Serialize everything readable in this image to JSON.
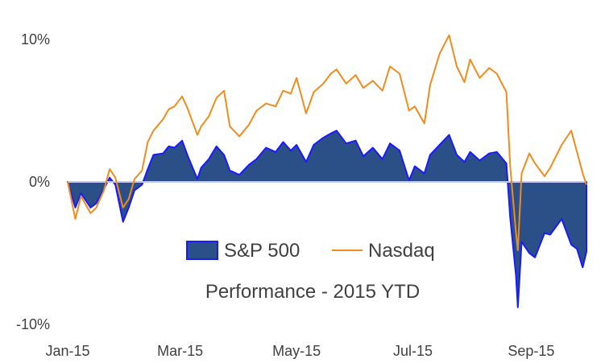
{
  "chart_data": {
    "type": "area",
    "title": "Performance  - 2015 YTD",
    "xlabel": "",
    "ylabel": "",
    "x_range": [
      "2015-01-01",
      "2015-09-30"
    ],
    "ylim": [
      -10,
      10
    ],
    "y_ticks": [
      {
        "value": 10,
        "label": "10%"
      },
      {
        "value": 0,
        "label": "0%"
      },
      {
        "value": -10,
        "label": "-10%"
      }
    ],
    "x_ticks": [
      {
        "date": "2015-01-01",
        "label": "Jan-15"
      },
      {
        "date": "2015-03-01",
        "label": "Mar-15"
      },
      {
        "date": "2015-05-01",
        "label": "May-15"
      },
      {
        "date": "2015-07-01",
        "label": "Jul-15"
      },
      {
        "date": "2015-09-01",
        "label": "Sep-15"
      }
    ],
    "grid": false,
    "legend_position": "bottom-center",
    "series": [
      {
        "name": "S&P 500",
        "type": "area",
        "fill_color": "#2b4f87",
        "edge_color": "#1a1aff",
        "points": [
          [
            "2015-01-01",
            0
          ],
          [
            "2015-01-05",
            -1.8
          ],
          [
            "2015-01-08",
            -0.8
          ],
          [
            "2015-01-13",
            -1.8
          ],
          [
            "2015-01-16",
            -1.5
          ],
          [
            "2015-01-20",
            -0.5
          ],
          [
            "2015-01-23",
            0.3
          ],
          [
            "2015-01-26",
            -0.2
          ],
          [
            "2015-01-30",
            -2.8
          ],
          [
            "2015-02-02",
            -1.8
          ],
          [
            "2015-02-05",
            -0.6
          ],
          [
            "2015-02-09",
            -0.2
          ],
          [
            "2015-02-12",
            0.9
          ],
          [
            "2015-02-15",
            1.9
          ],
          [
            "2015-02-20",
            2.0
          ],
          [
            "2015-02-23",
            2.5
          ],
          [
            "2015-02-26",
            2.4
          ],
          [
            "2015-03-02",
            2.9
          ],
          [
            "2015-03-05",
            1.8
          ],
          [
            "2015-03-10",
            0.2
          ],
          [
            "2015-03-12",
            1.0
          ],
          [
            "2015-03-16",
            1.6
          ],
          [
            "2015-03-20",
            2.5
          ],
          [
            "2015-03-24",
            1.9
          ],
          [
            "2015-03-27",
            0.8
          ],
          [
            "2015-04-01",
            0.5
          ],
          [
            "2015-04-06",
            1.2
          ],
          [
            "2015-04-10",
            1.6
          ],
          [
            "2015-04-15",
            2.4
          ],
          [
            "2015-04-20",
            2.1
          ],
          [
            "2015-04-24",
            2.8
          ],
          [
            "2015-04-28",
            2.2
          ],
          [
            "2015-05-01",
            2.6
          ],
          [
            "2015-05-06",
            1.4
          ],
          [
            "2015-05-10",
            2.6
          ],
          [
            "2015-05-15",
            3.1
          ],
          [
            "2015-05-19",
            3.4
          ],
          [
            "2015-05-22",
            3.6
          ],
          [
            "2015-05-27",
            2.7
          ],
          [
            "2015-06-01",
            2.9
          ],
          [
            "2015-06-05",
            1.8
          ],
          [
            "2015-06-10",
            2.4
          ],
          [
            "2015-06-15",
            1.6
          ],
          [
            "2015-06-19",
            2.7
          ],
          [
            "2015-06-24",
            2.2
          ],
          [
            "2015-06-29",
            0.1
          ],
          [
            "2015-07-02",
            1.1
          ],
          [
            "2015-07-07",
            0.6
          ],
          [
            "2015-07-10",
            1.9
          ],
          [
            "2015-07-15",
            2.6
          ],
          [
            "2015-07-20",
            3.3
          ],
          [
            "2015-07-24",
            1.9
          ],
          [
            "2015-07-28",
            1.4
          ],
          [
            "2015-07-31",
            2.1
          ],
          [
            "2015-08-05",
            1.5
          ],
          [
            "2015-08-10",
            2.0
          ],
          [
            "2015-08-14",
            2.1
          ],
          [
            "2015-08-19",
            1.3
          ],
          [
            "2015-08-21",
            -2.5
          ],
          [
            "2015-08-24",
            -6.5
          ],
          [
            "2015-08-25",
            -8.8
          ],
          [
            "2015-08-27",
            -4.2
          ],
          [
            "2015-08-31",
            -5.0
          ],
          [
            "2015-09-03",
            -5.3
          ],
          [
            "2015-09-08",
            -3.6
          ],
          [
            "2015-09-11",
            -3.7
          ],
          [
            "2015-09-17",
            -2.6
          ],
          [
            "2015-09-22",
            -4.4
          ],
          [
            "2015-09-25",
            -4.7
          ],
          [
            "2015-09-28",
            -6.0
          ],
          [
            "2015-09-30",
            -4.9
          ]
        ]
      },
      {
        "name": "Nasdaq",
        "type": "line",
        "color": "#f08c1e",
        "points": [
          [
            "2015-01-01",
            0
          ],
          [
            "2015-01-05",
            -2.6
          ],
          [
            "2015-01-08",
            -1.0
          ],
          [
            "2015-01-13",
            -2.2
          ],
          [
            "2015-01-16",
            -1.8
          ],
          [
            "2015-01-20",
            -0.6
          ],
          [
            "2015-01-23",
            0.9
          ],
          [
            "2015-01-26",
            0.3
          ],
          [
            "2015-01-30",
            -1.8
          ],
          [
            "2015-02-02",
            -1.2
          ],
          [
            "2015-02-05",
            0.2
          ],
          [
            "2015-02-09",
            0.8
          ],
          [
            "2015-02-12",
            2.8
          ],
          [
            "2015-02-15",
            3.6
          ],
          [
            "2015-02-20",
            4.4
          ],
          [
            "2015-02-23",
            5.1
          ],
          [
            "2015-02-26",
            5.3
          ],
          [
            "2015-03-02",
            6.0
          ],
          [
            "2015-03-05",
            5.1
          ],
          [
            "2015-03-10",
            3.3
          ],
          [
            "2015-03-12",
            3.9
          ],
          [
            "2015-03-16",
            4.6
          ],
          [
            "2015-03-20",
            5.9
          ],
          [
            "2015-03-24",
            6.4
          ],
          [
            "2015-03-27",
            3.9
          ],
          [
            "2015-04-01",
            3.2
          ],
          [
            "2015-04-06",
            4.0
          ],
          [
            "2015-04-10",
            5.0
          ],
          [
            "2015-04-15",
            5.5
          ],
          [
            "2015-04-20",
            5.3
          ],
          [
            "2015-04-24",
            6.4
          ],
          [
            "2015-04-28",
            6.2
          ],
          [
            "2015-05-01",
            7.3
          ],
          [
            "2015-05-06",
            4.8
          ],
          [
            "2015-05-10",
            6.3
          ],
          [
            "2015-05-15",
            6.9
          ],
          [
            "2015-05-19",
            7.6
          ],
          [
            "2015-05-22",
            7.9
          ],
          [
            "2015-05-27",
            6.9
          ],
          [
            "2015-06-01",
            7.5
          ],
          [
            "2015-06-05",
            6.6
          ],
          [
            "2015-06-10",
            7.1
          ],
          [
            "2015-06-15",
            6.4
          ],
          [
            "2015-06-19",
            8.1
          ],
          [
            "2015-06-24",
            7.6
          ],
          [
            "2015-06-29",
            5.0
          ],
          [
            "2015-07-02",
            5.3
          ],
          [
            "2015-07-07",
            4.1
          ],
          [
            "2015-07-10",
            6.8
          ],
          [
            "2015-07-15",
            9.0
          ],
          [
            "2015-07-20",
            10.3
          ],
          [
            "2015-07-24",
            8.1
          ],
          [
            "2015-07-28",
            7.0
          ],
          [
            "2015-07-31",
            8.6
          ],
          [
            "2015-08-05",
            7.3
          ],
          [
            "2015-08-10",
            8.0
          ],
          [
            "2015-08-14",
            7.6
          ],
          [
            "2015-08-19",
            6.3
          ],
          [
            "2015-08-21",
            1.1
          ],
          [
            "2015-08-24",
            -3.5
          ],
          [
            "2015-08-25",
            -4.8
          ],
          [
            "2015-08-27",
            0.6
          ],
          [
            "2015-08-31",
            2.0
          ],
          [
            "2015-09-03",
            1.3
          ],
          [
            "2015-09-08",
            0.4
          ],
          [
            "2015-09-11",
            1.0
          ],
          [
            "2015-09-17",
            2.6
          ],
          [
            "2015-09-22",
            3.6
          ],
          [
            "2015-09-25",
            2.1
          ],
          [
            "2015-09-28",
            0.6
          ],
          [
            "2015-09-30",
            -0.2
          ]
        ]
      }
    ]
  }
}
